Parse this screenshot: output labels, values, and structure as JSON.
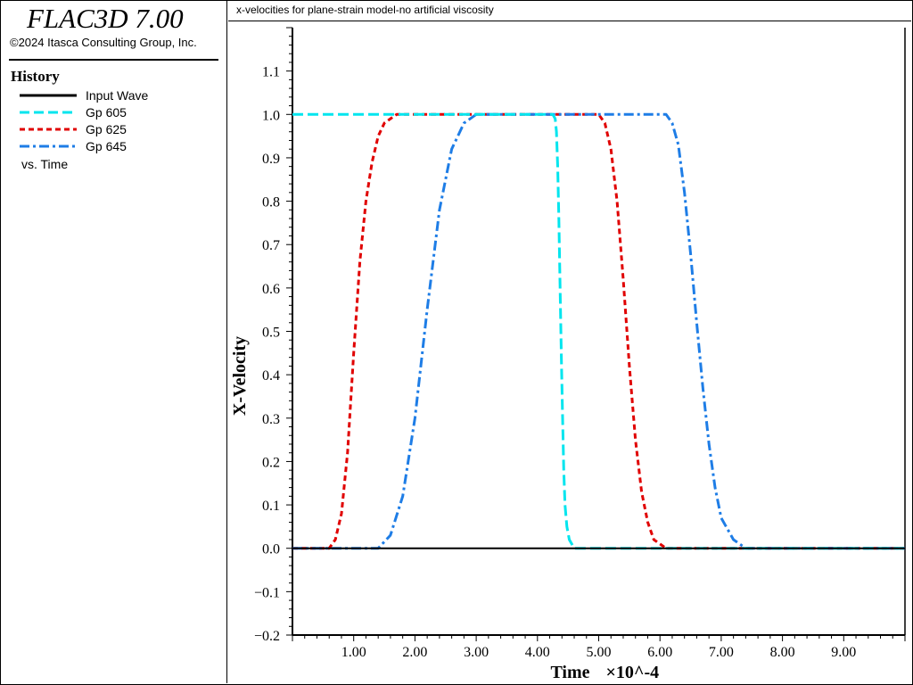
{
  "app": {
    "title": "FLAC3D 7.00",
    "copyright": "©2024 Itasca Consulting Group, Inc."
  },
  "history": {
    "title": "History",
    "vs_label": "vs. Time"
  },
  "plot": {
    "title": "x-velocities for plane-strain model-no artificial viscosity"
  },
  "chart_data": {
    "type": "line",
    "xlabel": "Time",
    "xlabel_suffix": "×10^-4",
    "ylabel": "X-Velocity",
    "xlim": [
      0.0,
      10.0
    ],
    "ylim": [
      -0.2,
      1.2
    ],
    "x_ticks": [
      {
        "value": 1,
        "label": "1.00"
      },
      {
        "value": 2,
        "label": "2.00"
      },
      {
        "value": 3,
        "label": "3.00"
      },
      {
        "value": 4,
        "label": "4.00"
      },
      {
        "value": 5,
        "label": "5.00"
      },
      {
        "value": 6,
        "label": "6.00"
      },
      {
        "value": 7,
        "label": "7.00"
      },
      {
        "value": 8,
        "label": "8.00"
      },
      {
        "value": 9,
        "label": "9.00"
      }
    ],
    "y_ticks": [
      {
        "value": 1.1,
        "label": "1.1"
      },
      {
        "value": 1.0,
        "label": "1.0"
      },
      {
        "value": 0.9,
        "label": "0.9"
      },
      {
        "value": 0.8,
        "label": "0.8"
      },
      {
        "value": 0.7,
        "label": "0.7"
      },
      {
        "value": 0.6,
        "label": "0.6"
      },
      {
        "value": 0.5,
        "label": "0.5"
      },
      {
        "value": 0.4,
        "label": "0.4"
      },
      {
        "value": 0.3,
        "label": "0.3"
      },
      {
        "value": 0.2,
        "label": "0.2"
      },
      {
        "value": 0.1,
        "label": "0.1"
      },
      {
        "value": 0.0,
        "label": "0.0"
      },
      {
        "value": -0.1,
        "label": "−0.1"
      },
      {
        "value": -0.2,
        "label": "−0.2"
      }
    ],
    "grid": false,
    "legend_placement": "left-panel",
    "series": [
      {
        "name": "Input Wave",
        "color": "#000000",
        "style": "solid",
        "x": [
          0.0,
          4.3,
          4.35,
          4.4,
          4.45,
          4.5,
          4.55,
          4.6,
          4.7,
          10.0
        ],
        "y": [
          0.0,
          0.0,
          0.0,
          0.0,
          0.0,
          0.0,
          0.0,
          0.0,
          0.0,
          0.0
        ]
      },
      {
        "name": "Gp 605",
        "color": "#00e5ee",
        "style": "dashed",
        "x": [
          0.0,
          4.25,
          4.29,
          4.31,
          4.33,
          4.35,
          4.37,
          4.39,
          4.41,
          4.43,
          4.45,
          4.48,
          4.52,
          4.6,
          4.75,
          10.0
        ],
        "y": [
          1.0,
          1.0,
          0.99,
          0.96,
          0.88,
          0.76,
          0.6,
          0.44,
          0.3,
          0.18,
          0.1,
          0.05,
          0.02,
          0.0,
          0.0,
          0.0
        ]
      },
      {
        "name": "Gp 625",
        "color": "#e00000",
        "style": "dashed",
        "x": [
          0.0,
          0.6,
          0.7,
          0.8,
          0.9,
          1.0,
          1.1,
          1.2,
          1.3,
          1.4,
          1.5,
          1.6,
          1.7,
          1.8,
          2.0,
          5.0,
          5.1,
          5.2,
          5.3,
          5.4,
          5.5,
          5.6,
          5.7,
          5.8,
          5.9,
          6.0,
          6.1,
          6.3,
          10.0
        ],
        "y": [
          0.0,
          0.0,
          0.02,
          0.08,
          0.22,
          0.45,
          0.66,
          0.8,
          0.89,
          0.95,
          0.98,
          0.99,
          1.0,
          1.0,
          1.0,
          1.0,
          0.98,
          0.92,
          0.8,
          0.62,
          0.42,
          0.25,
          0.13,
          0.06,
          0.02,
          0.01,
          0.0,
          0.0,
          0.0
        ]
      },
      {
        "name": "Gp 645",
        "color": "#1e7de6",
        "style": "dashdot",
        "x": [
          0.0,
          1.4,
          1.6,
          1.8,
          2.0,
          2.2,
          2.4,
          2.6,
          2.8,
          3.0,
          3.2,
          6.1,
          6.2,
          6.3,
          6.4,
          6.5,
          6.6,
          6.7,
          6.8,
          6.9,
          7.0,
          7.2,
          7.4,
          7.6,
          10.0
        ],
        "y": [
          0.0,
          0.0,
          0.03,
          0.12,
          0.3,
          0.55,
          0.78,
          0.92,
          0.98,
          1.0,
          1.0,
          1.0,
          0.98,
          0.93,
          0.82,
          0.68,
          0.52,
          0.37,
          0.24,
          0.14,
          0.07,
          0.02,
          0.0,
          0.0,
          0.0
        ]
      }
    ]
  }
}
